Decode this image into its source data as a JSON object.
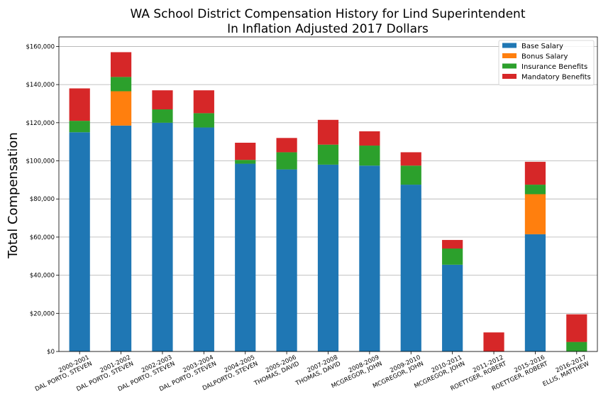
{
  "chart_data": {
    "type": "bar",
    "stacked": true,
    "title": "WA School District Compensation History for Lind Superintendent",
    "subtitle": "In Inflation Adjusted 2017 Dollars",
    "xlabel": "",
    "ylabel": "Total Compensation",
    "ylim": [
      0,
      165000
    ],
    "yticks": [
      0,
      20000,
      40000,
      60000,
      80000,
      100000,
      120000,
      140000,
      160000
    ],
    "ytick_labels": [
      "$0",
      "$20,000",
      "$40,000",
      "$60,000",
      "$80,000",
      "$100,000",
      "$120,000",
      "$140,000",
      "$160,000"
    ],
    "grid": true,
    "legend_position": "top-right",
    "categories": [
      [
        "2000-2001",
        "DAL PORTO, STEVEN"
      ],
      [
        "2001-2002",
        "DAL PORTO, STEVEN"
      ],
      [
        "2002-2003",
        "DAL PORTO, STEVEN"
      ],
      [
        "2003-2004",
        "DAL PORTO, STEVEN"
      ],
      [
        "2004-2005",
        "DALPORTO, STEVEN"
      ],
      [
        "2005-2006",
        "THOMAS, DAVID"
      ],
      [
        "2007-2008",
        "THOMAS, DAVID"
      ],
      [
        "2008-2009",
        "MCGREGOR, JOHN"
      ],
      [
        "2009-2010",
        "MCGREGOR, JOHN"
      ],
      [
        "2010-2011",
        "MCGREGOR, JOHN"
      ],
      [
        "2011-2012",
        "ROETTGER, ROBERT"
      ],
      [
        "2015-2016",
        "ROETTGER, ROBERT"
      ],
      [
        "2016-2017",
        "ELLIS, MATTHEW"
      ]
    ],
    "series": [
      {
        "name": "Base Salary",
        "color": "#1f77b4",
        "values": [
          115000,
          118500,
          120000,
          117500,
          98500,
          95500,
          98000,
          97500,
          87500,
          45500,
          0,
          61500,
          0
        ]
      },
      {
        "name": "Bonus Salary",
        "color": "#ff7f0e",
        "values": [
          0,
          18000,
          0,
          0,
          0,
          0,
          0,
          0,
          0,
          0,
          0,
          21000,
          0
        ]
      },
      {
        "name": "Insurance Benefits",
        "color": "#2ca02c",
        "values": [
          6000,
          7500,
          7000,
          7500,
          2000,
          9000,
          10500,
          10500,
          10000,
          8500,
          0,
          5000,
          5000
        ]
      },
      {
        "name": "Mandatory Benefits",
        "color": "#d62728",
        "values": [
          17000,
          13000,
          10000,
          12000,
          9000,
          7500,
          13000,
          7500,
          7000,
          4500,
          10000,
          12000,
          14500
        ]
      }
    ]
  }
}
